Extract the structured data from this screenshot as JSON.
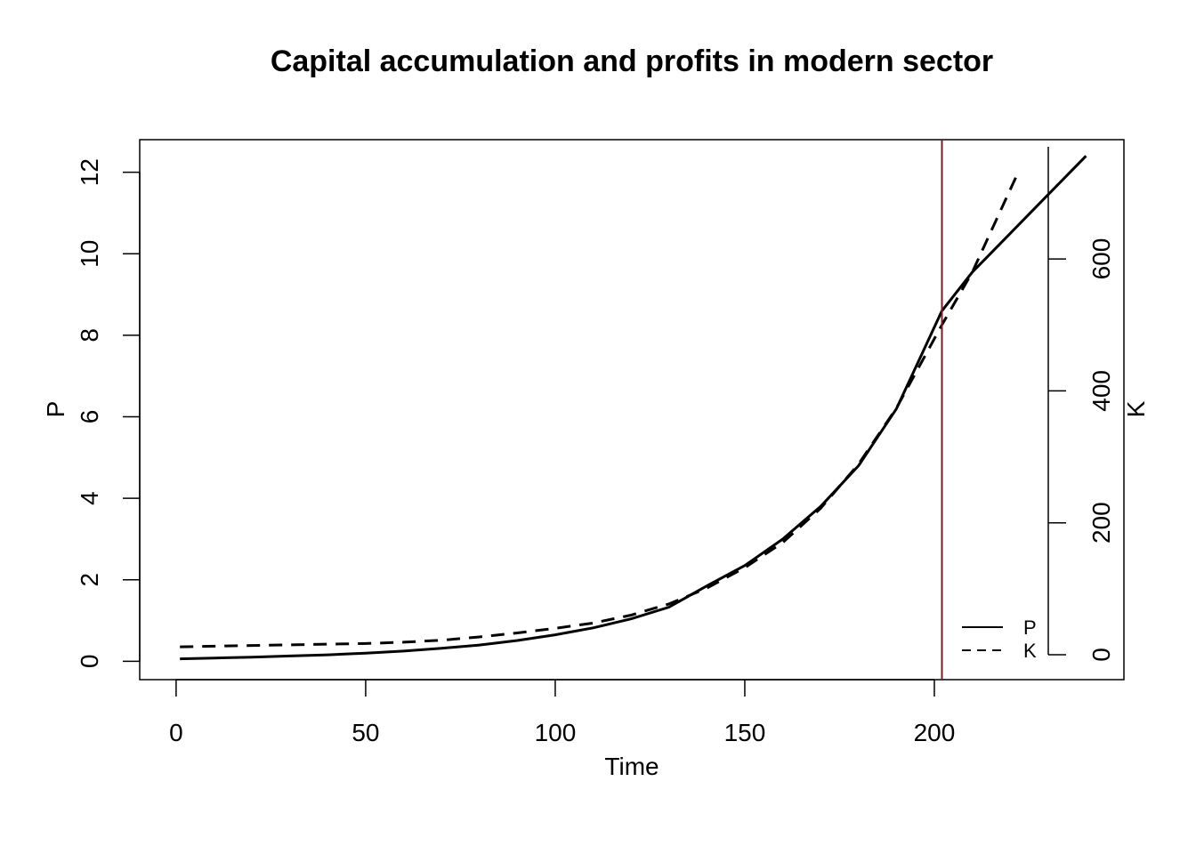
{
  "chart_data": {
    "type": "line",
    "title": "Capital accumulation and profits in modern sector",
    "xlabel": "Time",
    "ylabel": "P",
    "y2label": "K",
    "xlim": [
      -9.6,
      250
    ],
    "ylim": [
      -0.45,
      12.8
    ],
    "y2lim": [
      0,
      770
    ],
    "x_ticks": [
      0,
      50,
      100,
      150,
      200
    ],
    "y_ticks": [
      0,
      2,
      4,
      6,
      8,
      10,
      12
    ],
    "y2_ticks": [
      0,
      200,
      400,
      600
    ],
    "vline": {
      "x": 202,
      "color": "#7a1f1f"
    },
    "legend": {
      "position": "bottom-right",
      "entries": [
        {
          "label": "P",
          "style": "solid"
        },
        {
          "label": "K",
          "style": "dashed"
        }
      ]
    },
    "series": [
      {
        "name": "P",
        "axis": "left",
        "style": "solid",
        "x": [
          1,
          10,
          20,
          30,
          40,
          50,
          60,
          70,
          80,
          90,
          100,
          110,
          120,
          130,
          140,
          150,
          160,
          170,
          180,
          190,
          202,
          210,
          220,
          230,
          240
        ],
        "y": [
          0.06,
          0.08,
          0.1,
          0.13,
          0.16,
          0.2,
          0.25,
          0.32,
          0.4,
          0.51,
          0.65,
          0.82,
          1.04,
          1.33,
          1.85,
          2.35,
          3.0,
          3.8,
          4.8,
          6.2,
          8.6,
          9.55,
          10.5,
          11.45,
          12.4
        ]
      },
      {
        "name": "K",
        "axis": "right",
        "style": "dashed",
        "x": [
          1,
          10,
          20,
          30,
          40,
          50,
          60,
          70,
          80,
          90,
          100,
          110,
          120,
          130,
          140,
          150,
          160,
          170,
          180,
          190,
          202,
          210,
          222
        ],
        "y": [
          12,
          13,
          14,
          15,
          16,
          17,
          19,
          22,
          27,
          33,
          40,
          48,
          60,
          77,
          101,
          132,
          170,
          222,
          289,
          374,
          500,
          580,
          730
        ]
      }
    ]
  }
}
